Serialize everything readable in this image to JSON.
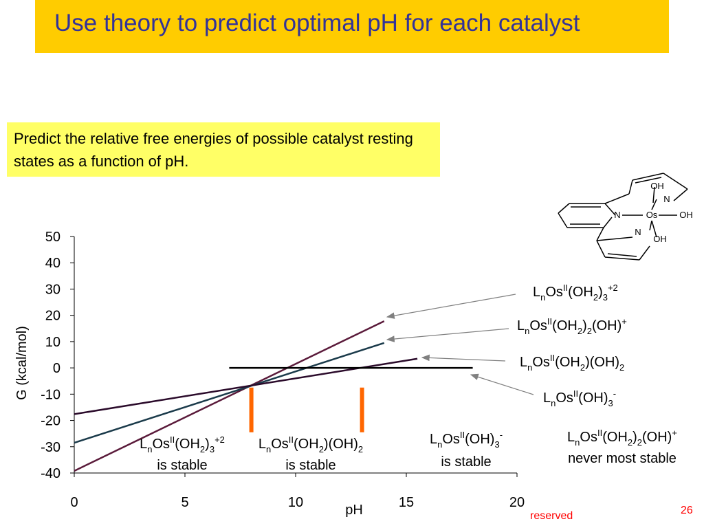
{
  "slide": {
    "title": "Use theory to predict optimal pH for each catalyst",
    "predict_text": "Predict the relative free energies of possible catalyst resting states as a function of pH.",
    "footer_reserved": "reserved",
    "page_number": "26"
  },
  "colors": {
    "title_bg": "#FFCC00",
    "title_text": "#333399",
    "predict_bg": "#FFFF66",
    "marker_orange": "#FF6600",
    "arrow_gray": "#808080",
    "footer_red": "#FF0000"
  },
  "molecule": {
    "atoms": [
      "Os",
      "N",
      "N",
      "N",
      "OH",
      "OH",
      "OH"
    ]
  },
  "chart_data": {
    "type": "line",
    "xlabel": "pH",
    "ylabel": "G (kcal/mol)",
    "xlim": [
      0,
      20
    ],
    "ylim": [
      -40,
      50
    ],
    "xticks": [
      0,
      5,
      10,
      15,
      20
    ],
    "yticks": [
      50,
      40,
      30,
      20,
      10,
      0,
      -10,
      -20,
      -30,
      -40
    ],
    "series": [
      {
        "name": "LnOsII(OH2)3+2",
        "color": "#5a1a3a",
        "points": [
          [
            0,
            -39.2
          ],
          [
            14,
            17.8
          ]
        ],
        "label": {
          "base": "L",
          "sub1": "n",
          "mid": "Os",
          "sup1": "II",
          "rest": "(OH",
          "sub2": "2",
          "rest2": ")",
          "sub3": "3",
          "sup2": "+2"
        }
      },
      {
        "name": "LnOsII(OH2)2(OH)+",
        "color": "#1a3a4a",
        "points": [
          [
            0,
            -28.5
          ],
          [
            14,
            9.5
          ]
        ],
        "label": {
          "base": "L",
          "sub1": "n",
          "mid": "Os",
          "sup1": "II",
          "rest": "(OH",
          "sub2": "2",
          "rest2": ")",
          "sub3": "2",
          "rest3": "(OH)",
          "sup2": "+"
        }
      },
      {
        "name": "LnOsII(OH2)(OH)2",
        "color": "#2a0a2a",
        "points": [
          [
            0,
            -17.6
          ],
          [
            15.5,
            3.5
          ]
        ],
        "label": {
          "base": "L",
          "sub1": "n",
          "mid": "Os",
          "sup1": "II",
          "rest": "(OH",
          "sub2": "2",
          "rest2": ")(OH)",
          "sub3": "2"
        }
      },
      {
        "name": "LnOsII(OH)3-",
        "color": "#000000",
        "points": [
          [
            7,
            0
          ],
          [
            18,
            0
          ]
        ],
        "label": {
          "base": "L",
          "sub1": "n",
          "mid": "Os",
          "sup1": "II",
          "rest": "(OH)",
          "sub2": "3",
          "sup2": "-"
        }
      }
    ],
    "vertical_markers": [
      {
        "x": 8,
        "y_range": [
          -24.5,
          -7.5
        ]
      },
      {
        "x": 13,
        "y_range": [
          -24.5,
          -7.5
        ]
      }
    ],
    "region_labels": [
      {
        "l1": {
          "base": "L",
          "sub1": "n",
          "mid": "Os",
          "sup1": "II",
          "rest": "(OH",
          "sub2": "2",
          "rest2": ")",
          "sub3": "3",
          "sup2": "+2"
        },
        "l2": "is stable"
      },
      {
        "l1": {
          "base": "L",
          "sub1": "n",
          "mid": "Os",
          "sup1": "II",
          "rest": "(OH",
          "sub2": "2",
          "rest2": ")(OH)",
          "sub3": "2"
        },
        "l2": "is stable"
      },
      {
        "l1": {
          "base": "L",
          "sub1": "n",
          "mid": "Os",
          "sup1": "II",
          "rest": "(OH)",
          "sub2": "3",
          "sup2": "-"
        },
        "l2": "is stable"
      }
    ],
    "note": {
      "l1": {
        "base": "L",
        "sub1": "n",
        "mid": "Os",
        "sup1": "II",
        "rest": "(OH",
        "sub2": "2",
        "rest2": ")",
        "sub3": "2",
        "rest3": "(OH)",
        "sup2": "+"
      },
      "l2": "never most stable"
    }
  }
}
